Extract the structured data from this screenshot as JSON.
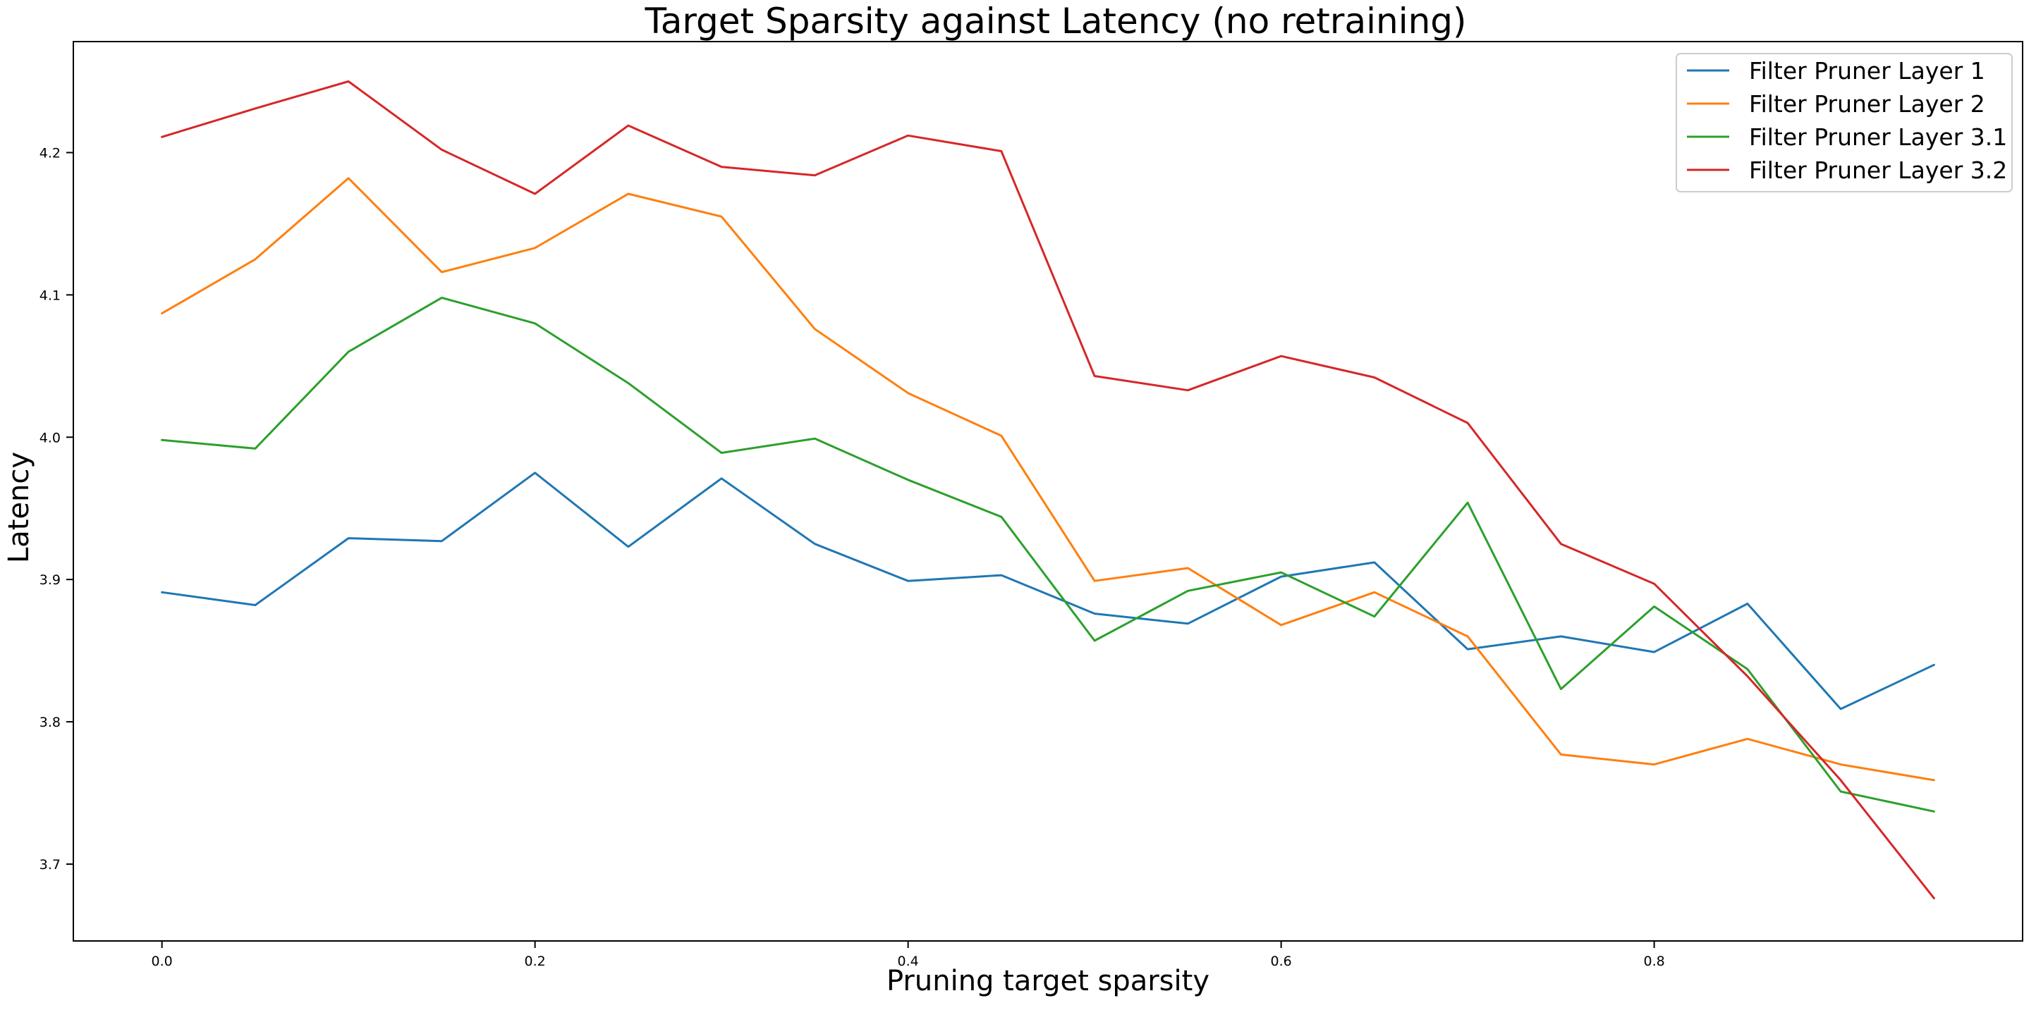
{
  "chart_data": {
    "type": "line",
    "title": "Target Sparsity against Latency (no retraining)",
    "xlabel": "Pruning target sparsity",
    "ylabel": "Latency",
    "xlim": [
      -0.0475,
      0.9975
    ],
    "ylim": [
      3.646,
      4.278
    ],
    "xticks": [
      0.0,
      0.2,
      0.4,
      0.6,
      0.8
    ],
    "xtick_labels": [
      "0.0",
      "0.2",
      "0.4",
      "0.6",
      "0.8"
    ],
    "yticks": [
      3.7,
      3.8,
      3.9,
      4.0,
      4.1,
      4.2
    ],
    "ytick_labels": [
      "3.7",
      "3.8",
      "3.9",
      "4.0",
      "4.1",
      "4.2"
    ],
    "grid": false,
    "legend_position": "top-right",
    "x": [
      0.0,
      0.05,
      0.1,
      0.15,
      0.2,
      0.25,
      0.3,
      0.35,
      0.4,
      0.45,
      0.5,
      0.55,
      0.6,
      0.65,
      0.7,
      0.75,
      0.8,
      0.85,
      0.9,
      0.95
    ],
    "series": [
      {
        "name": "Filter Pruner Layer 1",
        "color": "#1f77b4",
        "values": [
          3.891,
          3.882,
          3.929,
          3.927,
          3.975,
          3.923,
          3.971,
          3.925,
          3.899,
          3.903,
          3.876,
          3.869,
          3.902,
          3.912,
          3.851,
          3.86,
          3.849,
          3.883,
          3.809,
          3.84
        ]
      },
      {
        "name": "Filter Pruner Layer 2",
        "color": "#ff7f0e",
        "values": [
          4.087,
          4.125,
          4.182,
          4.116,
          4.133,
          4.171,
          4.155,
          4.076,
          4.031,
          4.001,
          3.899,
          3.908,
          3.868,
          3.891,
          3.86,
          3.777,
          3.77,
          3.788,
          3.77,
          3.759
        ]
      },
      {
        "name": "Filter Pruner Layer 3.1",
        "color": "#2ca02c",
        "values": [
          3.998,
          3.992,
          4.06,
          4.098,
          4.08,
          4.038,
          3.989,
          3.999,
          3.97,
          3.944,
          3.857,
          3.892,
          3.905,
          3.874,
          3.954,
          3.823,
          3.881,
          3.837,
          3.751,
          3.737
        ]
      },
      {
        "name": "Filter Pruner Layer 3.2",
        "color": "#d62728",
        "values": [
          4.211,
          4.231,
          4.25,
          4.202,
          4.171,
          4.219,
          4.19,
          4.184,
          4.212,
          4.201,
          4.043,
          4.033,
          4.057,
          4.042,
          4.01,
          3.925,
          3.897,
          3.832,
          3.759,
          3.676
        ]
      }
    ]
  }
}
